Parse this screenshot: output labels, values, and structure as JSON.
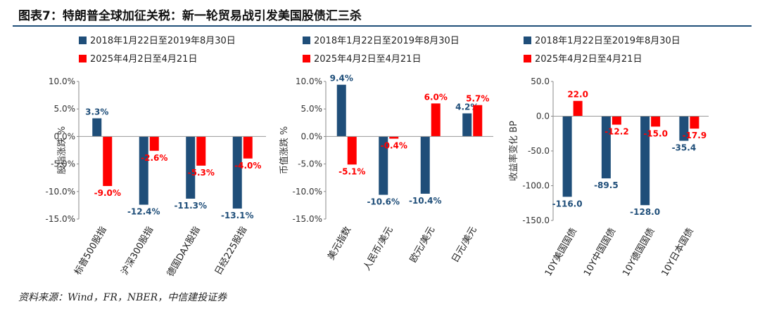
{
  "figure": {
    "title": "图表7：特朗普全球加征关税：新一轮贸易战引发美国股债汇三杀",
    "source": "资料来源：Wind，FR，NBER，中信建投证券"
  },
  "colors": {
    "series1": "#1f4e79",
    "series2": "#ff0000",
    "label1": "#1f4e79",
    "label2": "#ff0000"
  },
  "chart_data": [
    {
      "type": "bar",
      "ylabel": "股指涨跌 %",
      "ylim": [
        -0.15,
        0.1
      ],
      "yticks": [
        0.1,
        0.05,
        0.0,
        -0.05,
        -0.1,
        -0.15
      ],
      "ytick_labels": [
        "10.0%",
        "5.0%",
        "0.0%",
        "-5.0%",
        "-10.0%",
        "-15.0%"
      ],
      "categories": [
        "标普500股指",
        "沪深300股指",
        "德国DAX股指",
        "日经225股指"
      ],
      "legend_position": "top-left",
      "series": [
        {
          "name": "2018年1月22日至2019年8月30日",
          "values": [
            0.033,
            -0.124,
            -0.113,
            -0.131
          ],
          "labels": [
            "3.3%",
            "-12.4%",
            "-11.3%",
            "-13.1%"
          ]
        },
        {
          "name": "2025年4月2日至4月21日",
          "values": [
            -0.09,
            -0.026,
            -0.053,
            -0.04
          ],
          "labels": [
            "-9.0%",
            "-2.6%",
            "-5.3%",
            "-4.0%"
          ]
        }
      ]
    },
    {
      "type": "bar",
      "ylabel": "币值涨跌 %",
      "ylim": [
        -0.15,
        0.1
      ],
      "yticks": [
        0.1,
        0.05,
        0.0,
        -0.05,
        -0.1,
        -0.15
      ],
      "ytick_labels": [
        "10.0%",
        "5.0%",
        "0.0%",
        "-5.0%",
        "-10.0%",
        "-15.0%"
      ],
      "categories": [
        "美元指数",
        "人民币/美元",
        "欧元/美元",
        "日元/美元"
      ],
      "legend_position": "top-left",
      "series": [
        {
          "name": "2018年1月22日至2019年8月30日",
          "values": [
            0.094,
            -0.106,
            -0.104,
            0.042
          ],
          "labels": [
            "9.4%",
            "-10.6%",
            "-10.4%",
            "4.2%"
          ]
        },
        {
          "name": "2025年4月2日至4月21日",
          "values": [
            -0.051,
            -0.004,
            0.06,
            0.057
          ],
          "labels": [
            "-5.1%",
            "-0.4%",
            "6.0%",
            "5.7%"
          ]
        }
      ]
    },
    {
      "type": "bar",
      "ylabel": "收益率变化 BP",
      "ylim": [
        -150,
        50
      ],
      "yticks": [
        50,
        0,
        -50,
        -100,
        -150
      ],
      "ytick_labels": [
        "50.0",
        "0.0",
        "-50.0",
        "-100.0",
        "-150.0"
      ],
      "categories": [
        "10Y美国国债",
        "10Y中国国债",
        "10Y德国国债",
        "10Y日本国债"
      ],
      "legend_position": "top-left",
      "series": [
        {
          "name": "2018年1月22日至2019年8月30日",
          "values": [
            -116.0,
            -89.5,
            -128.0,
            -35.4
          ],
          "labels": [
            "-116.0",
            "-89.5",
            "-128.0",
            "-35.4"
          ]
        },
        {
          "name": "2025年4月2日至4月21日",
          "values": [
            22.0,
            -12.2,
            -15.0,
            -17.9
          ],
          "labels": [
            "22.0",
            "-12.2",
            "-15.0",
            "-17.9"
          ]
        }
      ]
    }
  ]
}
